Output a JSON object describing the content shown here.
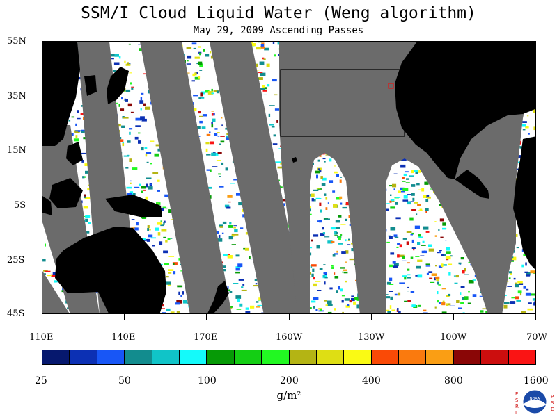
{
  "title": "SSM/I Cloud Liquid Water (Weng algorithm)",
  "subtitle": "May 29, 2009  Ascending Passes",
  "map": {
    "lat_labels": [
      "55N",
      "35N",
      "15N",
      "5S",
      "25S",
      "45S"
    ],
    "lon_labels": [
      "110E",
      "140E",
      "170E",
      "160W",
      "130W",
      "100W",
      "70W"
    ]
  },
  "colorbar": {
    "colors": [
      "#06186e",
      "#0c30b4",
      "#1856f6",
      "#128c8e",
      "#10c4c8",
      "#14fafa",
      "#069a06",
      "#14ce14",
      "#22f822",
      "#b4b414",
      "#dede14",
      "#fafa14",
      "#fa4a06",
      "#fa7a0e",
      "#fa9e14",
      "#8a0606",
      "#cc0e0e",
      "#fa1414"
    ],
    "labels": [
      "25",
      "50",
      "100",
      "200",
      "400",
      "800",
      "1600"
    ],
    "units": "g/m²"
  },
  "colors": {
    "land": "#000000",
    "gap": "#6b6b6b",
    "ocean_clear": "#ffffff",
    "box": "#000000",
    "marker": "#ff0000"
  },
  "logo": {
    "letters_left": [
      "E",
      "S",
      "R",
      "L"
    ],
    "letters_right": [
      "P",
      "S",
      "D"
    ],
    "center": "NOAA"
  }
}
